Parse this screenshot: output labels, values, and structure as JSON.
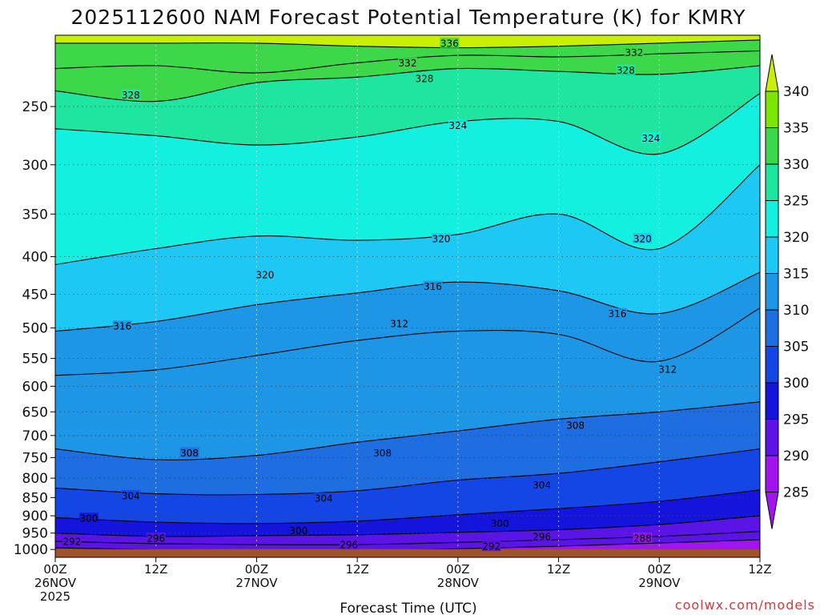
{
  "chart_data": {
    "type": "heatmap",
    "title": "2025112600 NAM Forecast Potential Temperature (K) for KMRY",
    "xlabel": "Forecast Time (UTC)",
    "ylabel": "",
    "credit": "coolwx.com/models",
    "x_ticks": [
      {
        "hours": 0,
        "line1": "00Z",
        "line2": "26NOV",
        "line3": "2025"
      },
      {
        "hours": 12,
        "line1": "12Z",
        "line2": "",
        "line3": ""
      },
      {
        "hours": 24,
        "line1": "00Z",
        "line2": "27NOV",
        "line3": ""
      },
      {
        "hours": 36,
        "line1": "12Z",
        "line2": "",
        "line3": ""
      },
      {
        "hours": 48,
        "line1": "00Z",
        "line2": "28NOV",
        "line3": ""
      },
      {
        "hours": 60,
        "line1": "12Z",
        "line2": "",
        "line3": ""
      },
      {
        "hours": 72,
        "line1": "00Z",
        "line2": "29NOV",
        "line3": ""
      },
      {
        "hours": 84,
        "line1": "12Z",
        "line2": "",
        "line3": ""
      }
    ],
    "xlim_hours": [
      0,
      84
    ],
    "y_ticks_hpa": [
      250,
      300,
      350,
      400,
      450,
      500,
      550,
      600,
      650,
      700,
      750,
      800,
      850,
      900,
      950,
      1000
    ],
    "ylim_hpa": [
      200,
      1025
    ],
    "y_scale": "log-pressure",
    "grid": true,
    "colorbar": {
      "position": "right",
      "levels": [
        340,
        335,
        330,
        325,
        320,
        315,
        310,
        305,
        300,
        295,
        290,
        285
      ],
      "colors": [
        "#c8f000",
        "#7ce600",
        "#3cd84a",
        "#1ee6a0",
        "#14f0e0",
        "#1ec8f5",
        "#1e96e6",
        "#1e6ee1",
        "#1446e6",
        "#1414dc",
        "#5a14e6",
        "#a014f0"
      ]
    },
    "terrain_color": "#a0522d",
    "contour_lines": [
      {
        "level": 336,
        "p": [
          205,
          205,
          205,
          207,
          208,
          207,
          205,
          203
        ]
      },
      {
        "level": 332,
        "p": [
          222,
          220,
          225,
          218,
          213,
          214,
          212,
          210
        ]
      },
      {
        "level": 328,
        "p": [
          238,
          246,
          232,
          228,
          222,
          224,
          226,
          220
        ]
      },
      {
        "level": 324,
        "p": [
          268,
          274,
          282,
          275,
          262,
          262,
          290,
          240
        ]
      },
      {
        "level": 320,
        "p": [
          410,
          390,
          375,
          380,
          373,
          350,
          390,
          300
        ]
      },
      {
        "level": 316,
        "p": [
          505,
          490,
          465,
          448,
          433,
          445,
          478,
          420
        ]
      },
      {
        "level": 312,
        "p": [
          580,
          570,
          545,
          520,
          505,
          510,
          555,
          470
        ]
      },
      {
        "level": 308,
        "p": [
          730,
          755,
          745,
          715,
          690,
          665,
          650,
          630
        ]
      },
      {
        "level": 304,
        "p": [
          825,
          840,
          842,
          832,
          805,
          788,
          760,
          730
        ]
      },
      {
        "level": 300,
        "p": [
          905,
          918,
          922,
          915,
          897,
          880,
          860,
          830
        ]
      },
      {
        "level": 296,
        "p": [
          950,
          960,
          958,
          955,
          948,
          940,
          925,
          900
        ]
      },
      {
        "level": 292,
        "p": [
          975,
          982,
          985,
          985,
          978,
          970,
          960,
          945
        ]
      },
      {
        "level": 288,
        "p": [
          995,
          1000,
          1002,
          1002,
          998,
          990,
          980,
          970
        ]
      }
    ],
    "contour_labels": [
      {
        "text": "336",
        "hours": 47,
        "p": 205
      },
      {
        "text": "332",
        "hours": 42,
        "p": 218
      },
      {
        "text": "332",
        "hours": 69,
        "p": 211
      },
      {
        "text": "328",
        "hours": 9,
        "p": 241
      },
      {
        "text": "328",
        "hours": 44,
        "p": 229
      },
      {
        "text": "328",
        "hours": 68,
        "p": 223
      },
      {
        "text": "324",
        "hours": 48,
        "p": 265
      },
      {
        "text": "324",
        "hours": 71,
        "p": 276
      },
      {
        "text": "320",
        "hours": 25,
        "p": 423
      },
      {
        "text": "320",
        "hours": 46,
        "p": 378
      },
      {
        "text": "320",
        "hours": 70,
        "p": 378
      },
      {
        "text": "316",
        "hours": 8,
        "p": 497
      },
      {
        "text": "316",
        "hours": 45,
        "p": 439
      },
      {
        "text": "316",
        "hours": 67,
        "p": 478
      },
      {
        "text": "312",
        "hours": 41,
        "p": 493
      },
      {
        "text": "312",
        "hours": 73,
        "p": 569
      },
      {
        "text": "308",
        "hours": 16,
        "p": 739
      },
      {
        "text": "308",
        "hours": 39,
        "p": 739
      },
      {
        "text": "308",
        "hours": 62,
        "p": 678
      },
      {
        "text": "304",
        "hours": 9,
        "p": 845
      },
      {
        "text": "304",
        "hours": 32,
        "p": 852
      },
      {
        "text": "304",
        "hours": 58,
        "p": 817
      },
      {
        "text": "300",
        "hours": 4,
        "p": 907
      },
      {
        "text": "300",
        "hours": 29,
        "p": 942
      },
      {
        "text": "300",
        "hours": 53,
        "p": 922
      },
      {
        "text": "296",
        "hours": 12,
        "p": 965
      },
      {
        "text": "296",
        "hours": 35,
        "p": 985
      },
      {
        "text": "296",
        "hours": 58,
        "p": 960
      },
      {
        "text": "292",
        "hours": 2,
        "p": 975
      },
      {
        "text": "292",
        "hours": 52,
        "p": 990
      },
      {
        "text": "288",
        "hours": 70,
        "p": 965
      }
    ]
  }
}
